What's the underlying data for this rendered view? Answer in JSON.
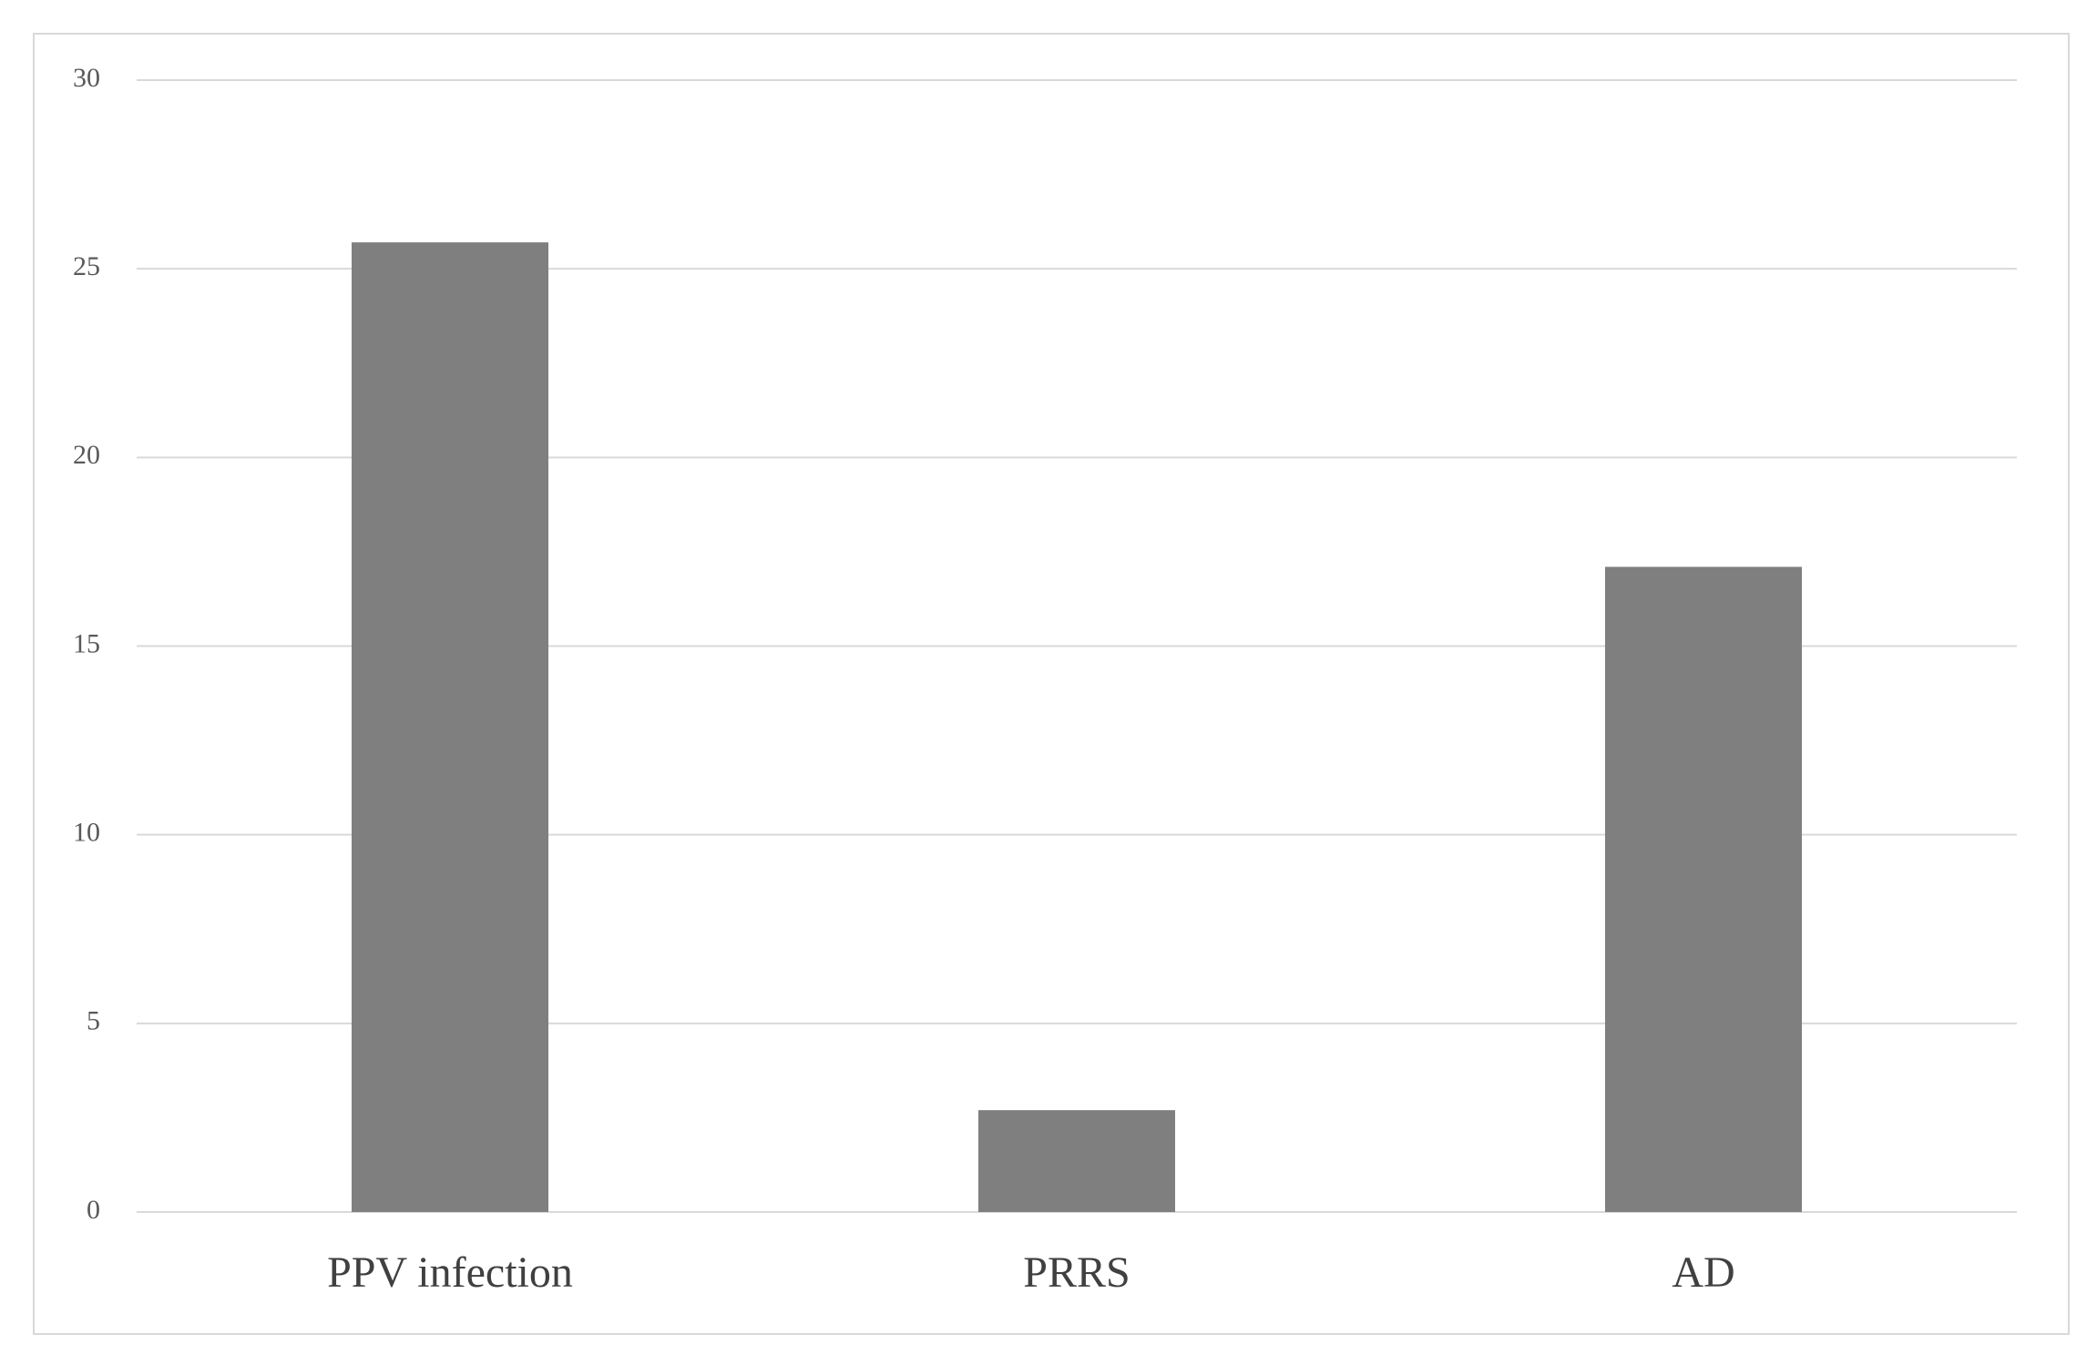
{
  "chart_data": {
    "type": "bar",
    "categories": [
      "PPV infection",
      "PRRS",
      "AD"
    ],
    "values": [
      25.7,
      2.7,
      17.1
    ],
    "color": "#7f7f7f",
    "ylim": [
      0,
      30
    ],
    "yticks": [
      0,
      5,
      10,
      15,
      20,
      25,
      30
    ],
    "grid": true
  }
}
